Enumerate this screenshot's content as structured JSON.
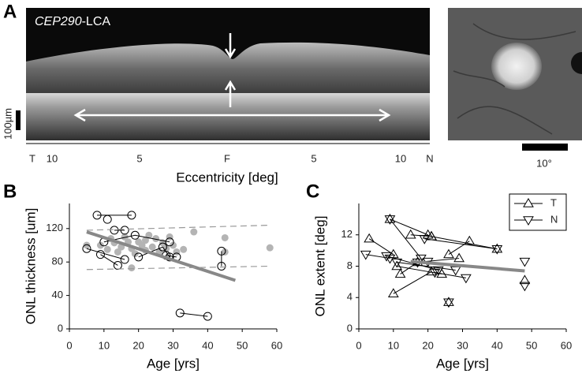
{
  "panel_a": {
    "letter": "A",
    "gene": "CEP290",
    "suffix": "-LCA",
    "scale": "100µm",
    "axis_labels": [
      "T",
      "10",
      "5",
      "F",
      "5",
      "10",
      "N"
    ],
    "axis_title": "Eccentricity [deg]",
    "fundus_scale": "10°"
  },
  "chart_data": [
    {
      "type": "scatter",
      "letter": "B",
      "x_label": "Age [yrs]",
      "y_label": "ONL thickness [um]",
      "xlim": [
        0,
        60
      ],
      "xticks": [
        0,
        10,
        20,
        30,
        40,
        50,
        60
      ],
      "ylim": [
        0,
        150
      ],
      "yticks": [
        0,
        40,
        80,
        120
      ],
      "series": [
        {
          "marker": "gray-dot",
          "color": "#b4b4b4",
          "x": [
            5,
            9,
            11,
            12,
            13,
            14,
            15,
            16,
            17,
            18,
            19,
            20,
            21,
            22,
            22,
            23,
            24,
            25,
            26,
            27,
            28,
            29,
            30,
            31,
            33,
            36,
            45,
            45,
            58,
            18
          ],
          "y": [
            100,
            100,
            95,
            108,
            103,
            92,
            98,
            110,
            104,
            96,
            90,
            104,
            100,
            106,
            94,
            112,
            98,
            108,
            92,
            103,
            96,
            110,
            100,
            92,
            95,
            116,
            109,
            92,
            97,
            73
          ]
        },
        {
          "marker": "open-circle",
          "color": "#000000",
          "subjects": [
            {
              "x": [
                8,
                18
              ],
              "y": [
                136,
                136
              ]
            },
            {
              "x": [
                11
              ],
              "y": [
                131
              ]
            },
            {
              "x": [
                13,
                16
              ],
              "y": [
                118,
                118
              ]
            },
            {
              "x": [
                10,
                19,
                29
              ],
              "y": [
                104,
                112,
                104
              ]
            },
            {
              "x": [
                5,
                16
              ],
              "y": [
                96,
                83
              ]
            },
            {
              "x": [
                9,
                14
              ],
              "y": [
                89,
                76
              ]
            },
            {
              "x": [
                20,
                27,
                29
              ],
              "y": [
                86,
                98,
                86
              ]
            },
            {
              "x": [
                28,
                31
              ],
              "y": [
                88,
                86
              ]
            },
            {
              "x": [
                44,
                44
              ],
              "y": [
                93,
                75
              ]
            },
            {
              "x": [
                32,
                40
              ],
              "y": [
                19,
                15
              ]
            }
          ]
        }
      ],
      "lines": [
        {
          "style": "solid",
          "color": "#888888",
          "x": [
            5,
            48
          ],
          "y": [
            116,
            58
          ]
        },
        {
          "style": "dashed",
          "color": "#999999",
          "x": [
            5,
            58
          ],
          "y": [
            118,
            124
          ]
        },
        {
          "style": "dashed",
          "color": "#999999",
          "x": [
            5,
            58
          ],
          "y": [
            71,
            75
          ]
        }
      ]
    },
    {
      "type": "scatter",
      "letter": "C",
      "x_label": "Age [yrs]",
      "y_label": "ONL extent [deg]",
      "xlim": [
        0,
        60
      ],
      "xticks": [
        0,
        10,
        20,
        30,
        40,
        50,
        60
      ],
      "ylim": [
        0,
        16
      ],
      "yticks": [
        0,
        4,
        8,
        12
      ],
      "series": [
        {
          "name": "T",
          "marker": "triangle-up",
          "color": "#000000",
          "subjects": [
            {
              "x": [
                9,
                20
              ],
              "y": [
                14,
                12
              ]
            },
            {
              "x": [
                3,
                10
              ],
              "y": [
                11.5,
                9.5
              ]
            },
            {
              "x": [
                15,
                21
              ],
              "y": [
                12,
                11.8
              ]
            },
            {
              "x": [
                11,
                24
              ],
              "y": [
                8,
                7
              ]
            },
            {
              "x": [
                12,
                17,
                29
              ],
              "y": [
                7,
                8.5,
                9
              ]
            },
            {
              "x": [
                10,
                21
              ],
              "y": [
                4.5,
                7.3
              ]
            },
            {
              "x": [
                26,
                32
              ],
              "y": [
                9.5,
                11.2
              ]
            },
            {
              "x": [
                21,
                40
              ],
              "y": [
                11.8,
                10.2
              ]
            },
            {
              "x": [
                48
              ],
              "y": [
                6.2
              ]
            },
            {
              "x": [
                26
              ],
              "y": [
                3.4
              ]
            }
          ]
        },
        {
          "name": "N",
          "marker": "triangle-down",
          "color": "#000000",
          "subjects": [
            {
              "x": [
                9,
                18
              ],
              "y": [
                14,
                9
              ]
            },
            {
              "x": [
                2,
                9
              ],
              "y": [
                9.5,
                9
              ]
            },
            {
              "x": [
                8,
                23
              ],
              "y": [
                9.3,
                7.5
              ]
            },
            {
              "x": [
                17,
                20
              ],
              "y": [
                8.5,
                8.6
              ]
            },
            {
              "x": [
                22,
                31
              ],
              "y": [
                7.2,
                6.5
              ]
            },
            {
              "x": [
                19,
                40
              ],
              "y": [
                11.5,
                10.2
              ]
            },
            {
              "x": [
                11,
                28
              ],
              "y": [
                8.5,
                7.5
              ]
            },
            {
              "x": [
                48
              ],
              "y": [
                8.6
              ]
            },
            {
              "x": [
                48
              ],
              "y": [
                5.5
              ]
            },
            {
              "x": [
                26
              ],
              "y": [
                3.4
              ]
            }
          ]
        }
      ],
      "lines": [
        {
          "style": "solid",
          "color": "#888888",
          "x": [
            15,
            48
          ],
          "y": [
            8.6,
            7.4
          ]
        }
      ],
      "legend": "top-right"
    }
  ]
}
